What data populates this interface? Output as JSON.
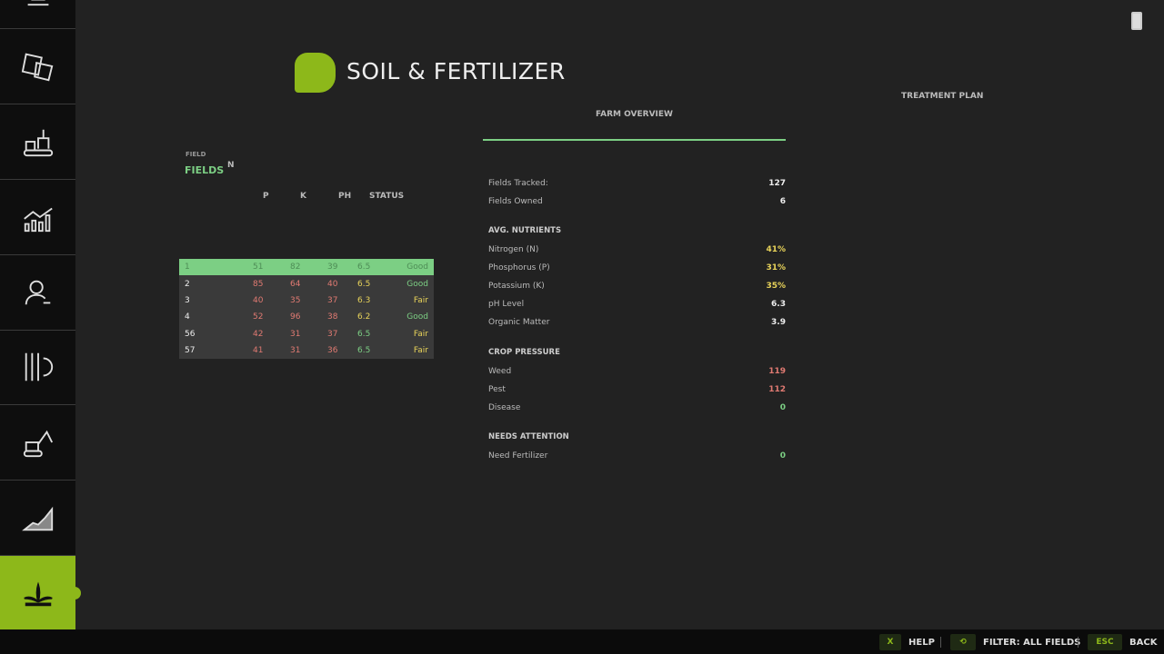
{
  "sidebar": {
    "items": [
      {
        "icon": "tractor-icon"
      },
      {
        "icon": "documents-icon"
      },
      {
        "icon": "production-icon"
      },
      {
        "icon": "statistics-icon"
      },
      {
        "icon": "worker-icon"
      },
      {
        "icon": "settings-icon"
      },
      {
        "icon": "excavator-icon"
      },
      {
        "icon": "prices-icon"
      },
      {
        "icon": "plant-icon",
        "active": true
      }
    ]
  },
  "header": {
    "title": "SOIL & FERTILIZER"
  },
  "tabs": {
    "overview": "FARM OVERVIEW",
    "treatment": "TREATMENT PLAN"
  },
  "fields": {
    "title": "FIELDS",
    "col_field": "FIELD",
    "col_n": "N",
    "col_p": "P",
    "col_k": "K",
    "col_ph": "PH",
    "col_status": "STATUS",
    "rows": [
      {
        "field": "1",
        "n": "51",
        "p": "82",
        "k": "39",
        "ph": "6.5",
        "status": "Good"
      },
      {
        "field": "2",
        "n": "85",
        "p": "64",
        "k": "40",
        "ph": "6.5",
        "status": "Good"
      },
      {
        "field": "3",
        "n": "40",
        "p": "35",
        "k": "37",
        "ph": "6.3",
        "status": "Fair"
      },
      {
        "field": "4",
        "n": "52",
        "p": "96",
        "k": "38",
        "ph": "6.2",
        "status": "Good"
      },
      {
        "field": "56",
        "n": "42",
        "p": "31",
        "k": "37",
        "ph": "6.5",
        "status": "Fair"
      },
      {
        "field": "57",
        "n": "41",
        "p": "31",
        "k": "36",
        "ph": "6.5",
        "status": "Fair"
      }
    ]
  },
  "overview": {
    "fields_tracked": {
      "label": "Fields Tracked:",
      "value": "127"
    },
    "fields_owned": {
      "label": "Fields Owned",
      "value": "6"
    },
    "avg_nutrients": "AVG. NUTRIENTS",
    "nitrogen": {
      "label": "Nitrogen (N)",
      "value": "41%"
    },
    "phosphorus": {
      "label": "Phosphorus (P)",
      "value": "31%"
    },
    "potassium": {
      "label": "Potassium (K)",
      "value": "35%"
    },
    "ph": {
      "label": "pH Level",
      "value": "6.3"
    },
    "organic": {
      "label": "Organic Matter",
      "value": "3.9"
    },
    "crop_pressure": "CROP PRESSURE",
    "weed": {
      "label": "Weed",
      "value": "119"
    },
    "pest": {
      "label": "Pest",
      "value": "112"
    },
    "disease": {
      "label": "Disease",
      "value": "0"
    },
    "needs_attention": "NEEDS ATTENTION",
    "need_fert": {
      "label": "Need Fertilizer",
      "value": "0"
    }
  },
  "bottom": {
    "help_key": "X",
    "help": "HELP",
    "filter_key": "⟲",
    "filter": "FILTER: ALL FIELDS",
    "back_key": "ESC",
    "back": "BACK"
  },
  "colors": {
    "accent": "#8db81a",
    "good": "#7ccf84",
    "warn": "#e8d35a",
    "bad": "#e07a72"
  }
}
